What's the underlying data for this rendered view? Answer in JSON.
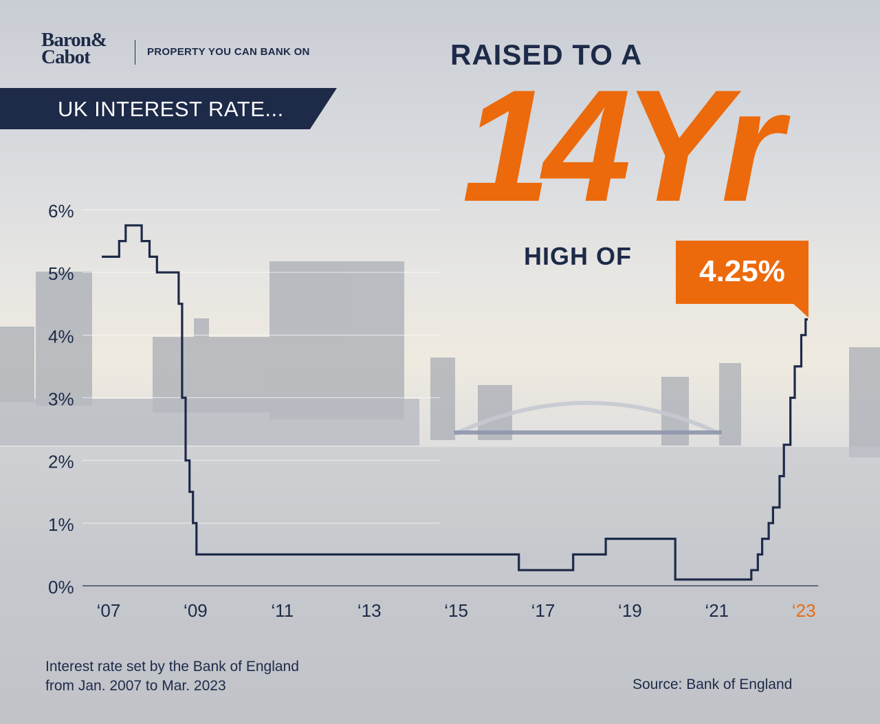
{
  "brand": {
    "logo_line1": "Baron&",
    "logo_line2": "Cabot",
    "tagline": "PROPERTY YOU CAN BANK ON"
  },
  "headline": {
    "banner": "UK INTEREST RATE...",
    "raised": "RAISED TO A",
    "big": "14Yr",
    "high_of": "HIGH OF",
    "value": "4.25%"
  },
  "colors": {
    "navy": "#1d2a48",
    "orange": "#ec6a0c"
  },
  "chart_data": {
    "type": "line",
    "step": true,
    "title": "",
    "xlabel": "",
    "ylabel": "",
    "xlim": [
      2007,
      2023.25
    ],
    "ylim": [
      0,
      6
    ],
    "y_ticks": [
      "0%",
      "1%",
      "2%",
      "3%",
      "4%",
      "5%",
      "6%"
    ],
    "x_ticks": [
      {
        "label": "‘07",
        "value": 2007,
        "highlight": false
      },
      {
        "label": "‘09",
        "value": 2009,
        "highlight": false
      },
      {
        "label": "‘11",
        "value": 2011,
        "highlight": false
      },
      {
        "label": "‘13",
        "value": 2013,
        "highlight": false
      },
      {
        "label": "‘15",
        "value": 2015,
        "highlight": false
      },
      {
        "label": "‘17",
        "value": 2017,
        "highlight": false
      },
      {
        "label": "‘19",
        "value": 2019,
        "highlight": false
      },
      {
        "label": "‘21",
        "value": 2021,
        "highlight": false
      },
      {
        "label": "‘23",
        "value": 2023,
        "highlight": true
      }
    ],
    "grid": "horizontal",
    "series": [
      {
        "steps": [
          {
            "x": 2007.0,
            "y": 5.25
          },
          {
            "x": 2007.4,
            "y": 5.5
          },
          {
            "x": 2007.55,
            "y": 5.75
          },
          {
            "x": 2007.92,
            "y": 5.5
          },
          {
            "x": 2008.1,
            "y": 5.25
          },
          {
            "x": 2008.27,
            "y": 5.0
          },
          {
            "x": 2008.77,
            "y": 4.5
          },
          {
            "x": 2008.85,
            "y": 3.0
          },
          {
            "x": 2008.93,
            "y": 2.0
          },
          {
            "x": 2009.02,
            "y": 1.5
          },
          {
            "x": 2009.1,
            "y": 1.0
          },
          {
            "x": 2009.18,
            "y": 0.5
          },
          {
            "x": 2016.6,
            "y": 0.25
          },
          {
            "x": 2017.85,
            "y": 0.5
          },
          {
            "x": 2018.6,
            "y": 0.75
          },
          {
            "x": 2020.2,
            "y": 0.1
          },
          {
            "x": 2021.95,
            "y": 0.25
          },
          {
            "x": 2022.1,
            "y": 0.5
          },
          {
            "x": 2022.2,
            "y": 0.75
          },
          {
            "x": 2022.35,
            "y": 1.0
          },
          {
            "x": 2022.45,
            "y": 1.25
          },
          {
            "x": 2022.6,
            "y": 1.75
          },
          {
            "x": 2022.7,
            "y": 2.25
          },
          {
            "x": 2022.85,
            "y": 3.0
          },
          {
            "x": 2022.95,
            "y": 3.5
          },
          {
            "x": 2023.1,
            "y": 4.0
          },
          {
            "x": 2023.2,
            "y": 4.25
          }
        ],
        "end_x": 2023.25
      }
    ],
    "note_line1": "Interest rate set by the Bank of England",
    "note_line2": "from Jan. 2007 to Mar. 2023",
    "source": "Source: Bank of England"
  }
}
